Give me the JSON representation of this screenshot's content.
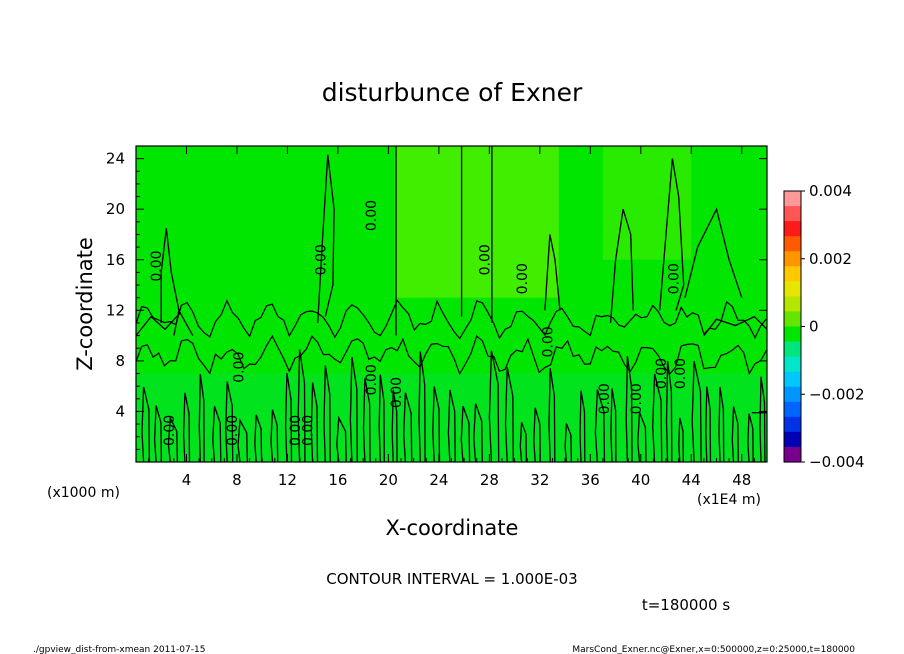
{
  "chart_data": {
    "type": "heatmap",
    "title": "disturbunce of Exner",
    "xlabel": "X-coordinate",
    "ylabel": "Z-coordinate",
    "x_unit_left": "(x1000 m)",
    "x_unit_right": "(x1E4 m)",
    "xlim": [
      0,
      50
    ],
    "ylim": [
      0,
      25
    ],
    "x_ticks": [
      "4",
      "8",
      "12",
      "16",
      "20",
      "24",
      "28",
      "32",
      "36",
      "40",
      "44",
      "48"
    ],
    "y_ticks": [
      "4",
      "8",
      "12",
      "16",
      "20",
      "24"
    ],
    "contour_interval_text": "CONTOUR INTERVAL = 1.000E-03",
    "time_text": "t=180000 s",
    "contour_labels": [
      {
        "text": "0.00",
        "x": 2.0,
        "z": 15.5
      },
      {
        "text": "0.00",
        "x": 3.0,
        "z": 2.5
      },
      {
        "text": "0.00",
        "x": 8.0,
        "z": 2.5
      },
      {
        "text": "0.00",
        "x": 8.5,
        "z": 7.5
      },
      {
        "text": "0.00",
        "x": 13.0,
        "z": 2.5
      },
      {
        "text": "0.00",
        "x": 14.0,
        "z": 2.5
      },
      {
        "text": "0.00",
        "x": 15.0,
        "z": 16.0
      },
      {
        "text": "0.00",
        "x": 19.0,
        "z": 19.5
      },
      {
        "text": "0.00",
        "x": 19.0,
        "z": 6.5
      },
      {
        "text": "0.00",
        "x": 21.0,
        "z": 5.5
      },
      {
        "text": "0.00",
        "x": 28.0,
        "z": 16.0
      },
      {
        "text": "0.00",
        "x": 31.0,
        "z": 14.5
      },
      {
        "text": "0.00",
        "x": 33.0,
        "z": 9.5
      },
      {
        "text": "0.00",
        "x": 37.5,
        "z": 5.0
      },
      {
        "text": "0.00",
        "x": 40.0,
        "z": 5.0
      },
      {
        "text": "0.00",
        "x": 42.0,
        "z": 7.0
      },
      {
        "text": "0.00",
        "x": 43.0,
        "z": 14.5
      },
      {
        "text": "0.00",
        "x": 43.5,
        "z": 7.0
      }
    ],
    "colorbar": {
      "labels": [
        "0.004",
        "0.002",
        "0",
        "−0.002",
        "−0.004"
      ],
      "range": [
        -0.004,
        0.004
      ],
      "colors": [
        "#ff9999",
        "#ff5555",
        "#ff1a1a",
        "#ff5a00",
        "#ff9600",
        "#ffc800",
        "#e6e600",
        "#b4e600",
        "#64e600",
        "#00e600",
        "#00e67a",
        "#00e6c8",
        "#00c8ff",
        "#0096ff",
        "#0064ff",
        "#0032e6",
        "#0000b4",
        "#78008c"
      ]
    },
    "field_colors": {
      "dominant": "#00e600",
      "upper": "#42ee00",
      "lower": "#00e040"
    }
  },
  "footer": {
    "left": "./gpview_dist-from-xmean  2011-07-15",
    "right": "MarsCond_Exner.nc@Exner,x=0:500000,z=0:25000,t=180000"
  }
}
